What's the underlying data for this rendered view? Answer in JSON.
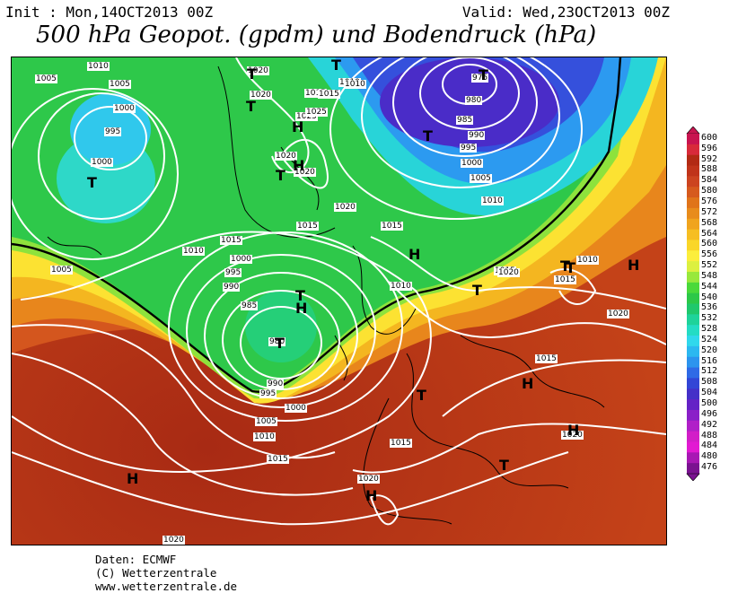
{
  "header": {
    "init_text": "Init : Mon,14OCT2013 00Z",
    "valid_text": "Valid: Wed,23OCT2013 00Z",
    "title": "500 hPa Geopot. (gpdm) und Bodendruck (hPa)"
  },
  "legend": {
    "labels": [
      "600",
      "596",
      "592",
      "588",
      "584",
      "580",
      "576",
      "572",
      "568",
      "564",
      "560",
      "556",
      "552",
      "548",
      "544",
      "540",
      "536",
      "532",
      "528",
      "524",
      "520",
      "516",
      "512",
      "508",
      "504",
      "500",
      "496",
      "492",
      "488",
      "484",
      "480",
      "476"
    ],
    "colors": [
      "#c81450",
      "#d82a3a",
      "#b22a14",
      "#c0341a",
      "#cc4420",
      "#d65a1e",
      "#e0741a",
      "#e88c1c",
      "#f0a41e",
      "#f6be22",
      "#fad628",
      "#fcee3c",
      "#dcf040",
      "#98e83c",
      "#4ad93a",
      "#2cc848",
      "#1fc86c",
      "#1ed39a",
      "#24dcc4",
      "#30d8ec",
      "#2cb8f0",
      "#2c94ee",
      "#2f6ae6",
      "#3246d6",
      "#4430c8",
      "#6422c6",
      "#8a20c8",
      "#b020c8",
      "#d21ec8",
      "#e21ad2",
      "#a818b4",
      "#7a1290"
    ]
  },
  "map": {
    "pressure_labels": [
      "1010",
      "1005",
      "1005",
      "1000",
      "995",
      "1000",
      "1020",
      "1020",
      "1020",
      "1015",
      "1010",
      "1025",
      "1020",
      "1025",
      "1020",
      "1015",
      "1010",
      "975",
      "980",
      "985",
      "990",
      "995",
      "1000",
      "1005",
      "1010",
      "1005",
      "1010",
      "1015",
      "1000",
      "995",
      "990",
      "985",
      "980",
      "1015",
      "1015",
      "1010",
      "1015",
      "1020",
      "1015",
      "1010",
      "1020",
      "990",
      "995",
      "1000",
      "1005",
      "1010",
      "1015",
      "1015",
      "1020",
      "1020",
      "1020",
      "1015"
    ],
    "high_markers": [
      "H",
      "H",
      "H",
      "H",
      "H",
      "H",
      "H",
      "H",
      "H"
    ],
    "low_markers": [
      "T",
      "T",
      "T",
      "T",
      "T",
      "T",
      "T",
      "T",
      "T",
      "T",
      "T",
      "T",
      "T",
      "T"
    ]
  },
  "footer": {
    "line1": "Daten: ECMWF",
    "line2": "(C) Wetterzentrale",
    "line3": "www.wetterzentrale.de"
  }
}
